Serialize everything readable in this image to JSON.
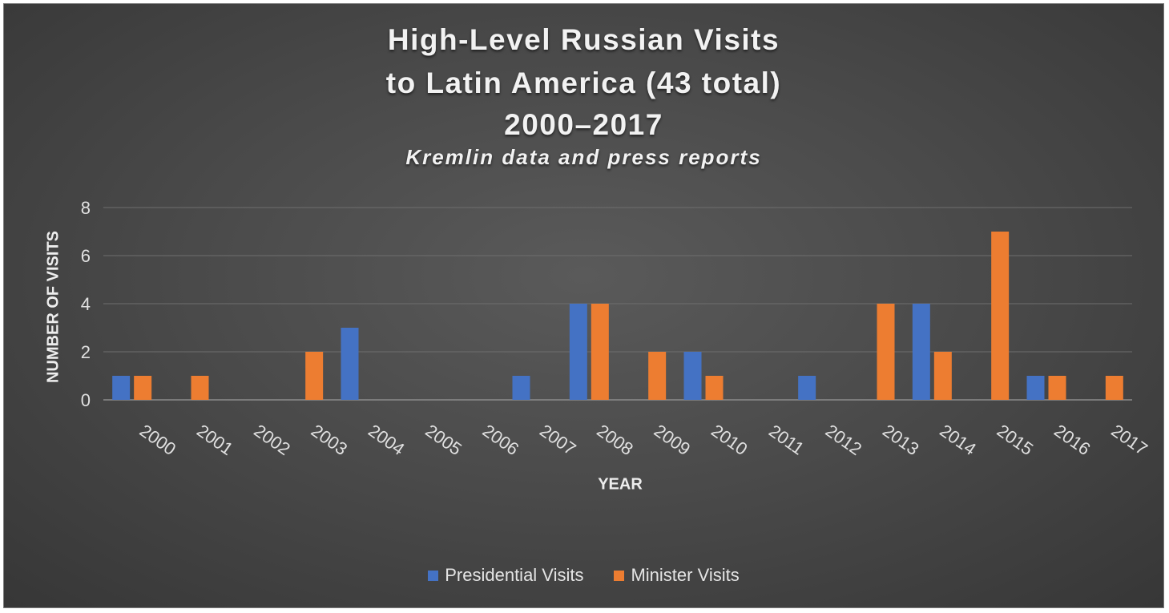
{
  "chart_data": {
    "type": "bar",
    "title_lines": [
      "High-Level Russian Visits",
      "to Latin America (43 total)",
      "2000–2017"
    ],
    "subtitle": "Kremlin data and press reports",
    "xlabel": "YEAR",
    "ylabel": "NUMBER OF VISITS",
    "ylim": [
      0,
      8
    ],
    "yticks": [
      "0",
      "2",
      "4",
      "6",
      "8"
    ],
    "grid": true,
    "legend_position": "bottom",
    "categories": [
      "2000",
      "2001",
      "2002",
      "2003",
      "2004",
      "2005",
      "2006",
      "2007",
      "2008",
      "2009",
      "2010",
      "2011",
      "2012",
      "2013",
      "2014",
      "2015",
      "2016",
      "2017"
    ],
    "series": [
      {
        "name": "Presidential Visits",
        "color": "#4472C4",
        "values": [
          1,
          0,
          0,
          0,
          3,
          0,
          0,
          1,
          4,
          0,
          2,
          0,
          1,
          0,
          4,
          0,
          1,
          0
        ]
      },
      {
        "name": "Minister Visits",
        "color": "#ED7D31",
        "values": [
          1,
          1,
          0,
          2,
          0,
          0,
          0,
          0,
          4,
          2,
          1,
          0,
          0,
          4,
          2,
          7,
          1,
          1
        ]
      }
    ]
  }
}
